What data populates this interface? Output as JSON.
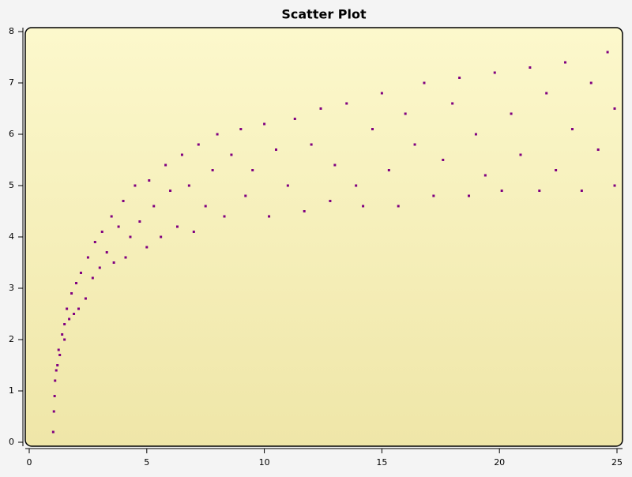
{
  "chart_data": {
    "type": "scatter",
    "title": "Scatter Plot",
    "color": "#800080",
    "x": [
      1.02,
      1.05,
      1.08,
      1.1,
      1.15,
      1.2,
      1.25,
      1.3,
      1.4,
      1.5,
      1.5,
      1.6,
      1.7,
      1.8,
      1.9,
      2.0,
      2.1,
      2.2,
      2.4,
      2.5,
      2.7,
      2.8,
      3.0,
      3.1,
      3.3,
      3.5,
      3.6,
      3.8,
      4.0,
      4.1,
      4.3,
      4.5,
      4.7,
      5.0,
      5.1,
      5.3,
      5.6,
      5.8,
      6.0,
      6.3,
      6.5,
      6.8,
      7.0,
      7.2,
      7.5,
      7.8,
      8.0,
      8.3,
      8.6,
      9.0,
      9.2,
      9.5,
      10.0,
      10.2,
      10.5,
      11.0,
      11.3,
      11.7,
      12.0,
      12.4,
      12.8,
      13.0,
      13.5,
      13.9,
      14.2,
      14.6,
      15.0,
      15.3,
      15.7,
      16.0,
      16.4,
      16.8,
      17.2,
      17.6,
      18.0,
      18.3,
      18.7,
      19.0,
      19.4,
      19.8,
      20.1,
      20.5,
      20.9,
      21.3,
      21.7,
      22.0,
      22.4,
      22.8,
      23.1,
      23.5,
      23.9,
      24.2,
      24.6,
      24.9,
      24.9
    ],
    "values": [
      0.2,
      0.6,
      0.9,
      1.2,
      1.4,
      1.5,
      1.8,
      1.7,
      2.1,
      2.3,
      2.0,
      2.6,
      2.4,
      2.9,
      2.5,
      3.1,
      2.6,
      3.3,
      2.8,
      3.6,
      3.2,
      3.9,
      3.4,
      4.1,
      3.7,
      4.4,
      3.5,
      4.2,
      4.7,
      3.6,
      4.0,
      5.0,
      4.3,
      3.8,
      5.1,
      4.6,
      4.0,
      5.4,
      4.9,
      4.2,
      5.6,
      5.0,
      4.1,
      5.8,
      4.6,
      5.3,
      6.0,
      4.4,
      5.6,
      6.1,
      4.8,
      5.3,
      6.2,
      4.4,
      5.7,
      5.0,
      6.3,
      4.5,
      5.8,
      6.5,
      4.7,
      5.4,
      6.6,
      5.0,
      4.6,
      6.1,
      6.8,
      5.3,
      4.6,
      6.4,
      5.8,
      7.0,
      4.8,
      5.5,
      6.6,
      7.1,
      4.8,
      6.0,
      5.2,
      7.2,
      4.9,
      6.4,
      5.6,
      7.3,
      4.9,
      6.8,
      5.3,
      7.4,
      6.1,
      4.9,
      7.0,
      5.7,
      7.6,
      5.0,
      6.5
    ],
    "xlim": [
      0,
      25
    ],
    "xticks": [
      0,
      5,
      10,
      15,
      20,
      25
    ],
    "ylim": [
      0,
      8
    ],
    "yticks": [
      0,
      1,
      2,
      3,
      4,
      5,
      6,
      7,
      8
    ]
  }
}
